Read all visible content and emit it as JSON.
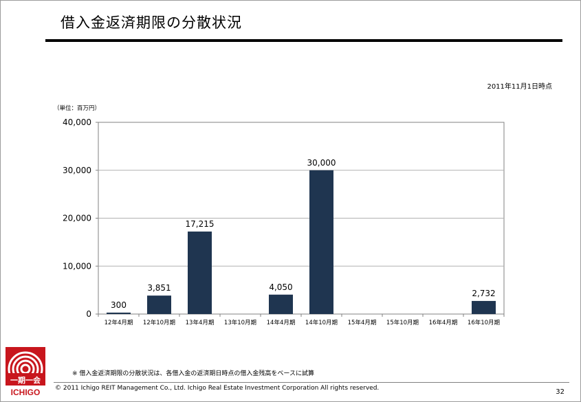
{
  "slide": {
    "title": "借入金返済期限の分散状況",
    "as_of": "2011年11月1日時点",
    "unit_label": "（単位：百万円）",
    "note": "※ 借入金返済期限の分散状況は、各借入金の返済期日時点の借入金残高をベースに試算",
    "copyright": "© 2011 Ichigo REIT Management Co., Ltd.  Ichigo Real Estate Investment Corporation  All rights reserved.",
    "page_number": "32"
  },
  "logo": {
    "kanji": "一期一会",
    "word": "ICHIGO"
  },
  "colors": {
    "bar": "#1f3550",
    "brand_red": "#c8161d"
  },
  "chart_data": {
    "type": "bar",
    "categories": [
      "12年4月期",
      "12年10月期",
      "13年4月期",
      "13年10月期",
      "14年4月期",
      "14年10月期",
      "15年4月期",
      "15年10月期",
      "16年4月期",
      "16年10月期"
    ],
    "values": [
      300,
      3851,
      17215,
      0,
      4050,
      30000,
      0,
      0,
      0,
      2732
    ],
    "data_labels": [
      "300",
      "3,851",
      "17,215",
      "",
      "4,050",
      "30,000",
      "",
      "",
      "",
      "2,732"
    ],
    "yticks": [
      0,
      10000,
      20000,
      30000,
      40000
    ],
    "ytick_labels": [
      "0",
      "10,000",
      "20,000",
      "30,000",
      "40,000"
    ],
    "ylim": [
      0,
      40000
    ],
    "grid": true,
    "legend": "none"
  }
}
